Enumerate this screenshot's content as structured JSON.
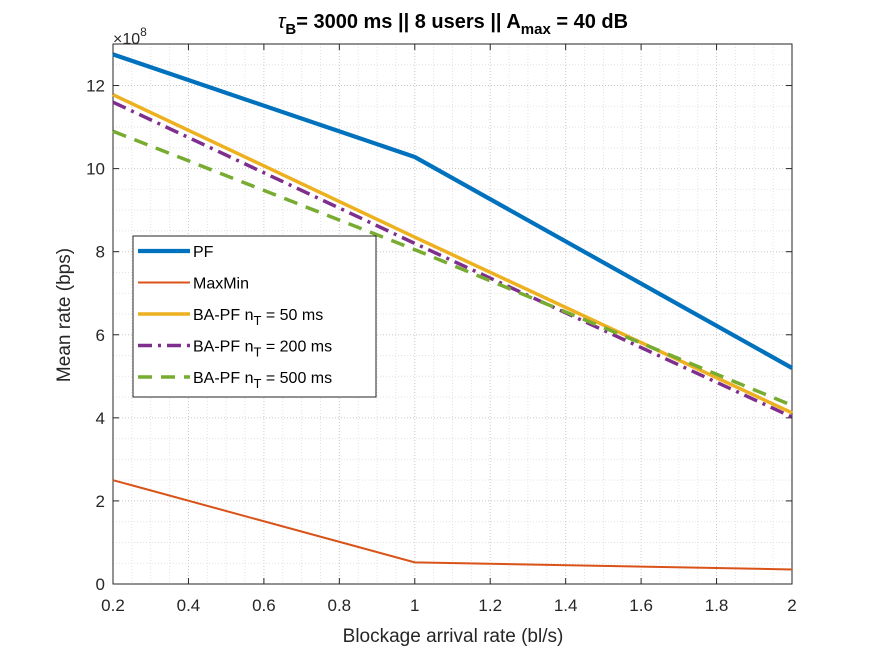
{
  "chart_data": {
    "type": "line",
    "title": {
      "tau": "τ",
      "tau_sub": "B",
      "mid": "= 3000 ms || 8 users || A",
      "a_sub": "max",
      "end": " = 40 dB"
    },
    "xlabel": "Blockage arrival rate (bl/s)",
    "ylabel": "Mean rate (bps)",
    "y_exponent_base": "×10",
    "y_exponent_power": "8",
    "xlim": [
      0.2,
      2
    ],
    "ylim": [
      0,
      13
    ],
    "xticks": [
      "0.2",
      "0.4",
      "0.6",
      "0.8",
      "1",
      "1.2",
      "1.4",
      "1.6",
      "1.8",
      "2"
    ],
    "yticks": [
      "0",
      "2",
      "4",
      "6",
      "8",
      "10",
      "12"
    ],
    "grid": "dotted major and minor",
    "legend_position": "left-middle",
    "x": [
      0.2,
      1,
      2
    ],
    "series": [
      {
        "name": "PF",
        "legend_main": "PF",
        "legend_sub": "",
        "legend_tail": "",
        "values": [
          12.75,
          10.28,
          5.2
        ],
        "color": "#0072BD",
        "style": "solid",
        "width": 4.2
      },
      {
        "name": "MaxMin",
        "legend_main": "MaxMin",
        "legend_sub": "",
        "legend_tail": "",
        "values": [
          2.5,
          0.52,
          0.35
        ],
        "color": "#D95319",
        "style": "solid",
        "width": 2
      },
      {
        "name": "BA-PF nT = 50 ms",
        "legend_main": "BA-PF n",
        "legend_sub": "T",
        "legend_tail": " = 50 ms",
        "values": [
          11.78,
          8.35,
          4.12
        ],
        "color": "#EDB120",
        "style": "solid",
        "width": 3.5
      },
      {
        "name": "BA-PF nT = 200 ms",
        "legend_main": "BA-PF n",
        "legend_sub": "T",
        "legend_tail": " = 200 ms",
        "values": [
          11.6,
          8.2,
          4.02
        ],
        "color": "#7E2F8E",
        "style": "dashdot",
        "width": 3.5
      },
      {
        "name": "BA-PF nT = 500 ms",
        "legend_main": "BA-PF n",
        "legend_sub": "T",
        "legend_tail": " = 500 ms",
        "values": [
          10.9,
          8.05,
          4.3
        ],
        "color": "#77AC30",
        "style": "dashed",
        "width": 3.5
      }
    ]
  }
}
